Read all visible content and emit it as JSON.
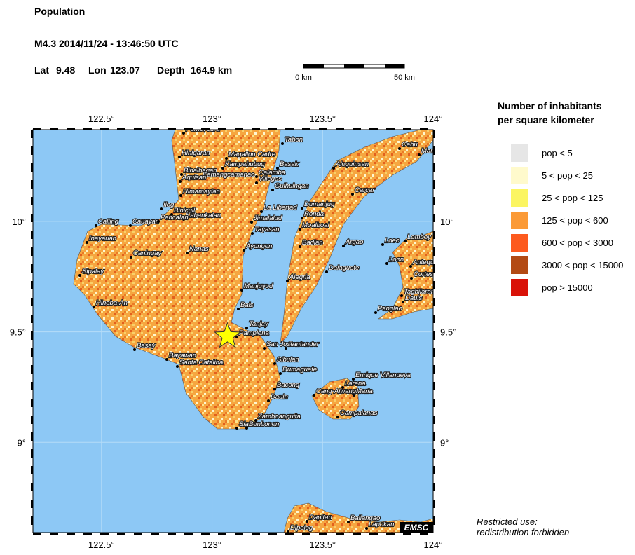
{
  "header": {
    "title": "Population",
    "event": "M4.3  2014/11/24 - 13:46:50 UTC",
    "lat_label": "Lat",
    "lat": 9.48,
    "lon_label": "Lon",
    "lon": 123.07,
    "depth_label": "Depth",
    "depth": "164.9 km"
  },
  "scale_bar": {
    "start": "0 km",
    "end": "50 km"
  },
  "map": {
    "xlim": [
      122.19,
      124.0
    ],
    "ylim": [
      8.592,
      10.415
    ],
    "xticks": [
      {
        "value": 122.5,
        "label": "122.5°"
      },
      {
        "value": 123,
        "label": "123°"
      },
      {
        "value": 123.5,
        "label": "123.5°"
      },
      {
        "value": 124,
        "label": "124°"
      }
    ],
    "yticks": [
      {
        "value": 9,
        "label": "9°"
      },
      {
        "value": 9.5,
        "label": "9.5°"
      },
      {
        "value": 10,
        "label": "10°"
      }
    ],
    "credit": "EMSC",
    "cities": [
      "Pontevedra",
      "Tabon",
      "Hinigaran",
      "Magallon Cadre",
      "Aloguinsan",
      "Cebu",
      "Mambaling",
      "Kampahubug",
      "Basak",
      "Binalbagan",
      "Kamangcamanac",
      "Calamba",
      "Villegas",
      "Aquisan",
      "Guihulngan",
      "Carcar",
      "Himamaylan",
      "Dumanjug",
      "La Libertad",
      "Ilog",
      "Binicuil",
      "Kabankalan",
      "Cauayan",
      "Calling",
      "Pancalan",
      "Ronda",
      "Jimalalud",
      "Moalboal",
      "Lomboy",
      "Loec",
      "Tayasan",
      "Inayauan",
      "Badian",
      "Argao",
      "Ayungon",
      "Nanas",
      "Caningay",
      "Loon",
      "Antequera",
      "Dalaguete",
      "Sipalay",
      "Alegria",
      "Cortes",
      "Manjuyod",
      "Tagbilaran",
      "Dauis",
      "Hinoba-An",
      "Bais",
      "Panglao",
      "Tanjay",
      "Pamplona",
      "Basay",
      "Santander",
      "San Jose",
      "Bayawan",
      "Santa Catalina",
      "Sibulan",
      "Dumaguete",
      "Enrique Villanueva",
      "Larena",
      "Bacong",
      "Cang-Alwang",
      "Maria",
      "Dauin",
      "Campalanas",
      "Zamboanguita",
      "Siaton",
      "Bonbonon",
      "Dapitan",
      "Ballangao",
      "Lapokan",
      "Dipolog"
    ]
  },
  "legend": {
    "title": [
      "Number of inhabitants",
      "per square kilometer"
    ],
    "items": [
      {
        "label": "pop < 5",
        "color": "#e6e6e6"
      },
      {
        "label": "5 < pop < 25",
        "color": "#fffacc"
      },
      {
        "label": "25 < pop < 125",
        "color": "#fbf561"
      },
      {
        "label": "125 < pop < 600",
        "color": "#fb9a36"
      },
      {
        "label": "600 < pop < 3000",
        "color": "#fd5a1e"
      },
      {
        "label": "3000 < pop < 15000",
        "color": "#b34a14"
      },
      {
        "label": "pop > 15000",
        "color": "#d91208"
      }
    ]
  },
  "footer": [
    "Restricted use:",
    "redistribution forbidden"
  ]
}
